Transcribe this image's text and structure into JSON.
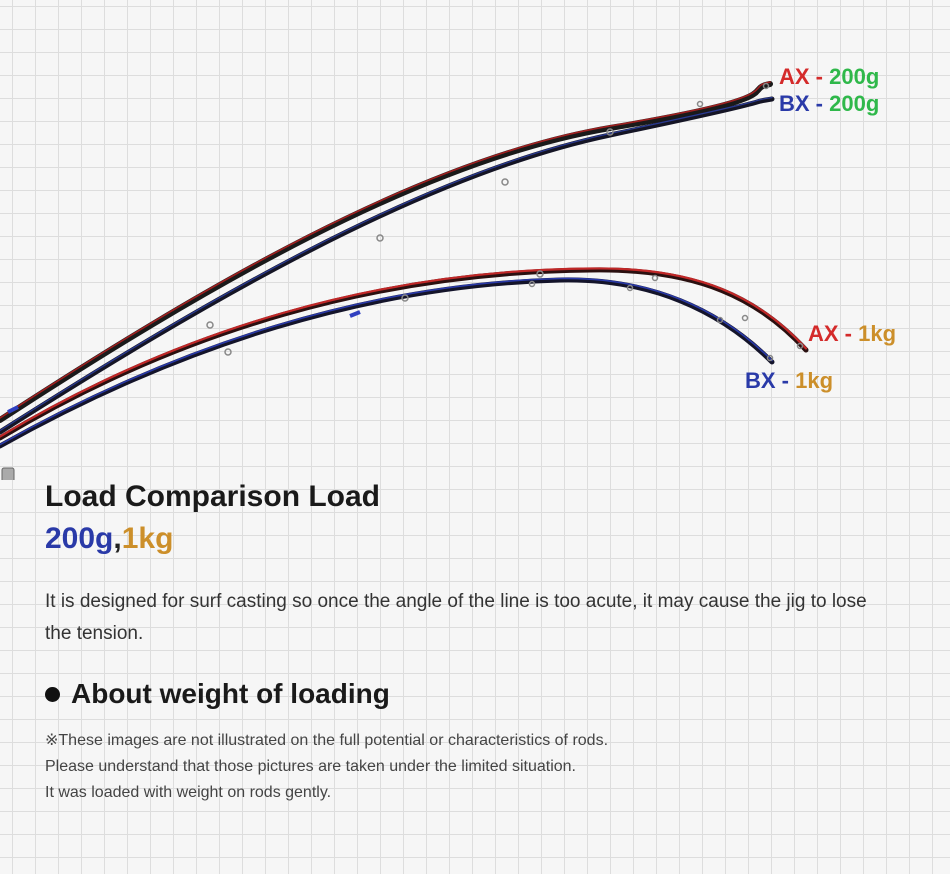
{
  "labels": {
    "ax_200g": {
      "rod": "AX",
      "sep": " - ",
      "weight": "200g"
    },
    "bx_200g": {
      "rod": "BX",
      "sep": " - ",
      "weight": "200g"
    },
    "ax_1kg": {
      "rod": "AX",
      "sep": " - ",
      "weight": "1kg"
    },
    "bx_1kg": {
      "rod": "BX",
      "sep": " - ",
      "weight": "1kg"
    }
  },
  "title": "Load Comparison Load",
  "subtitle": {
    "weight_1": "200g",
    "comma": ",",
    "weight_2": "1kg"
  },
  "description": "It is designed for surf casting so once the angle of the line is too acute, it may cause the jig to lose the tension.",
  "section_heading": "About weight of loading",
  "notes": [
    "※These images are not illustrated on the full potential or characteristics of rods.",
    "Please understand that those pictures are taken under the limited situation.",
    "It was loaded with weight on rods gently."
  ],
  "colors": {
    "ax": "#d42a2a",
    "bx": "#2a3aa8",
    "weight_200g": "#2fb84a",
    "weight_1kg": "#cc8f2a"
  }
}
